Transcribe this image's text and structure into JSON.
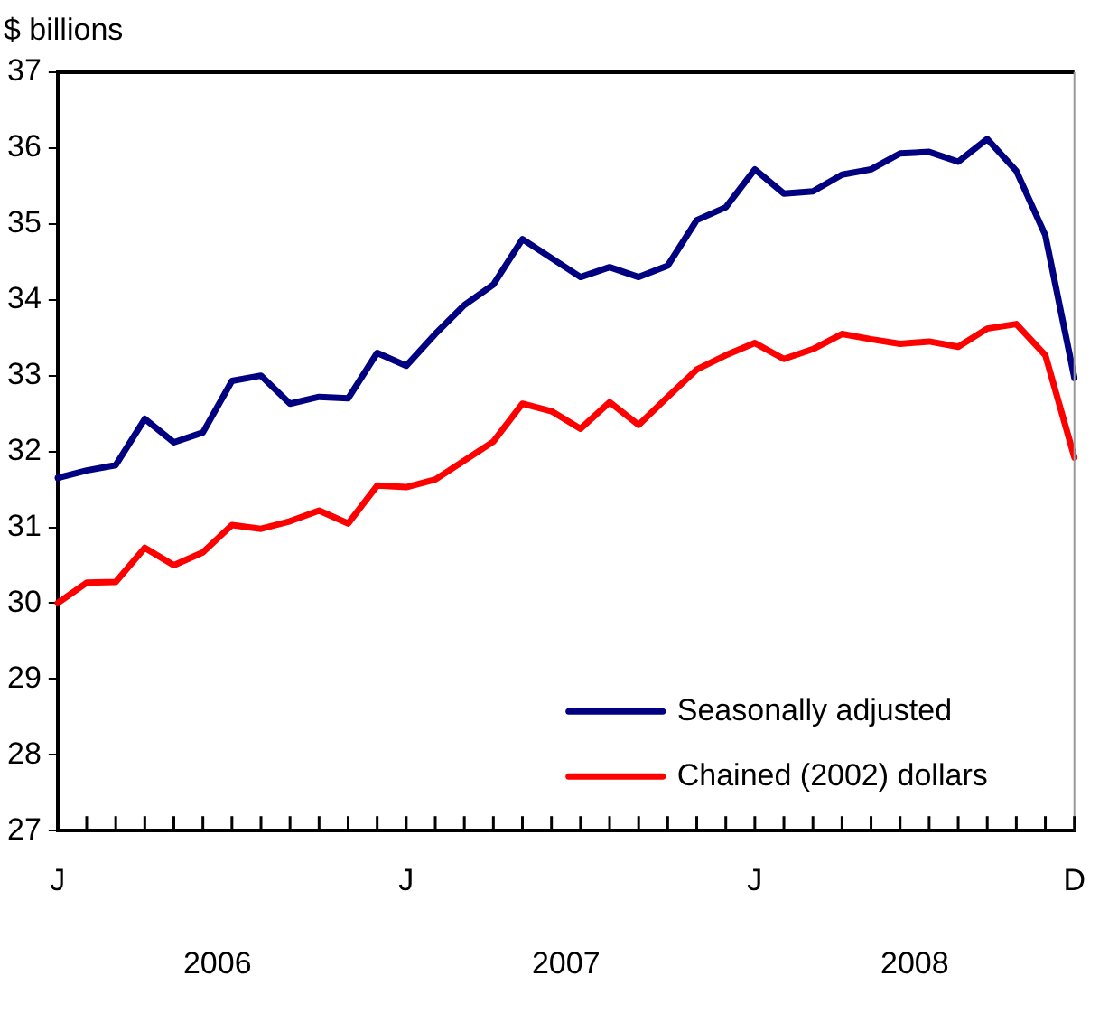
{
  "chart_data": {
    "type": "line",
    "ylabel": "$ billions",
    "categories": [
      "J",
      null,
      null,
      null,
      null,
      null,
      null,
      null,
      null,
      null,
      null,
      null,
      "J",
      null,
      null,
      null,
      null,
      null,
      null,
      null,
      null,
      null,
      null,
      null,
      "J",
      null,
      null,
      null,
      null,
      null,
      null,
      null,
      null,
      null,
      null,
      "D"
    ],
    "series": [
      {
        "name": "Seasonally adjusted",
        "color": "#000080",
        "values": [
          31.65,
          31.75,
          31.82,
          32.43,
          32.12,
          32.25,
          32.93,
          33.0,
          32.63,
          32.72,
          32.7,
          33.3,
          33.13,
          33.55,
          33.93,
          34.2,
          34.8,
          34.55,
          34.3,
          34.43,
          34.3,
          34.45,
          35.05,
          35.22,
          35.72,
          35.4,
          35.43,
          35.65,
          35.72,
          35.93,
          35.95,
          35.82,
          36.12,
          35.7,
          34.85,
          32.97
        ]
      },
      {
        "name": "Chained (2002) dollars",
        "color": "#ff0000",
        "values": [
          30.0,
          30.27,
          30.28,
          30.73,
          30.5,
          30.67,
          31.03,
          30.98,
          31.08,
          31.22,
          31.05,
          31.55,
          31.53,
          31.63,
          31.88,
          32.13,
          32.63,
          32.53,
          32.3,
          32.65,
          32.35,
          32.72,
          33.08,
          33.27,
          33.43,
          33.22,
          33.35,
          33.55,
          33.48,
          33.42,
          33.45,
          33.38,
          33.62,
          33.68,
          33.27,
          31.92
        ]
      }
    ],
    "ylim": [
      27,
      37
    ],
    "yticks": [
      27,
      28,
      29,
      30,
      31,
      32,
      33,
      34,
      35,
      36,
      37
    ],
    "annotations": [
      "2006",
      "2007",
      "2008"
    ],
    "grid": false,
    "legend": "bottom right",
    "marker": "none",
    "line_style": "solid"
  }
}
